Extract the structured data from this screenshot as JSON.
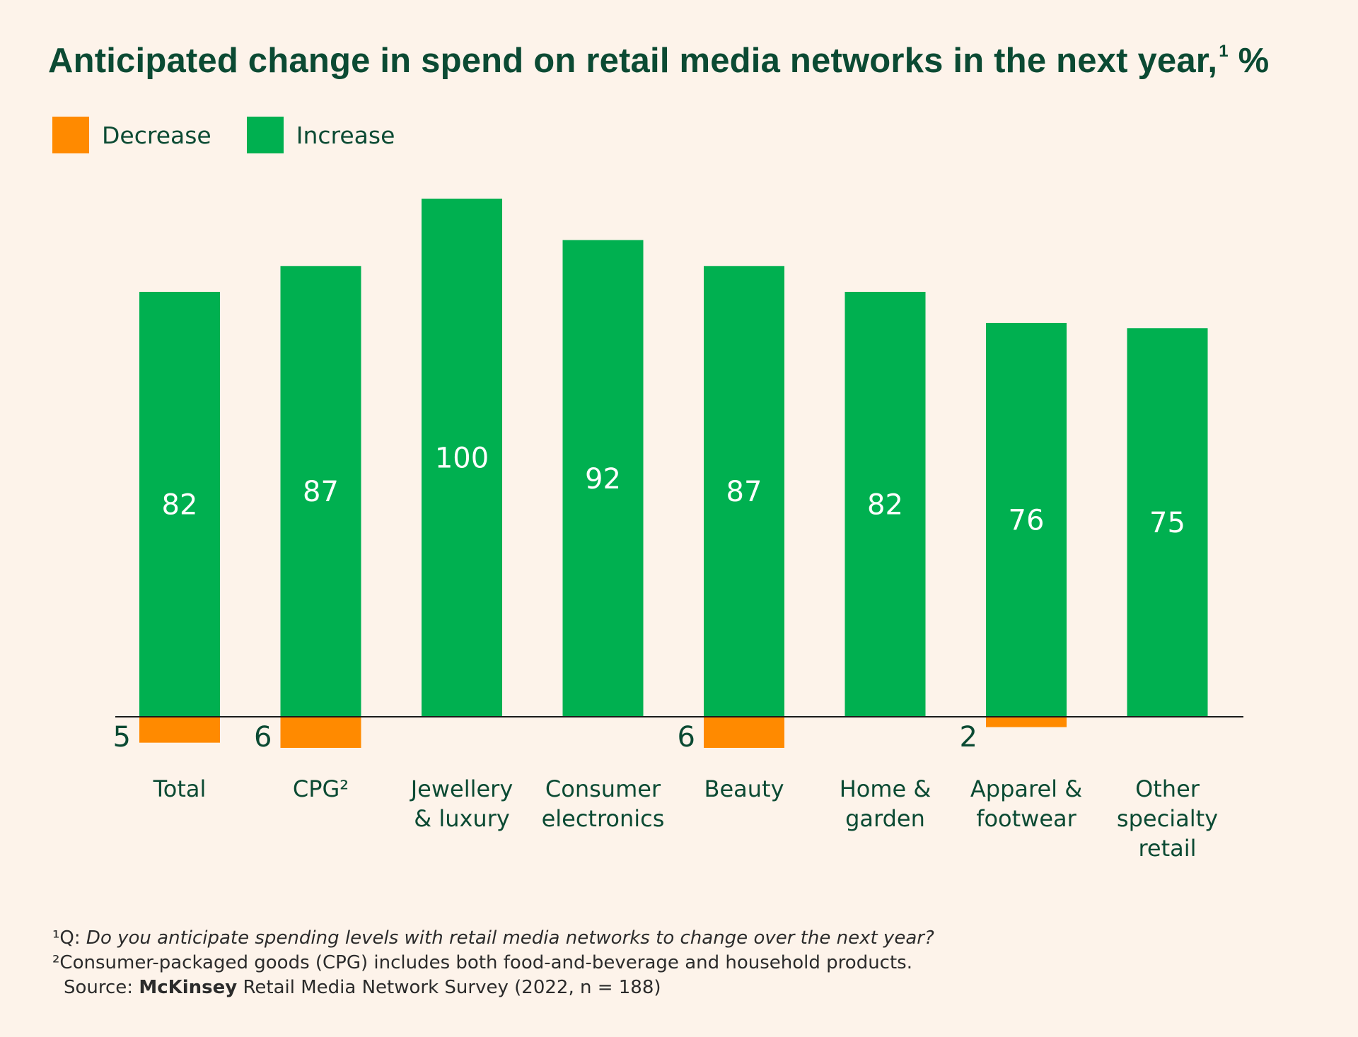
{
  "title": "Anticipated change in spend on retail media networks in the next year,",
  "title_sup": "1",
  "title_unit": "%",
  "colors": {
    "decrease": "#ff8a00",
    "increase": "#00b050",
    "text": "#0b4a33",
    "background": "#fdf3ea"
  },
  "legend": [
    {
      "label": "Decrease",
      "color": "#ff8a00"
    },
    {
      "label": "Increase",
      "color": "#00b050"
    }
  ],
  "chart_data": {
    "type": "bar",
    "categories": [
      [
        "Total"
      ],
      [
        "CPG²"
      ],
      [
        "Jewellery",
        "& luxury"
      ],
      [
        "Consumer",
        "electronics"
      ],
      [
        "Beauty"
      ],
      [
        "Home &",
        "garden"
      ],
      [
        "Apparel &",
        "footwear"
      ],
      [
        "Other",
        "specialty",
        "retail"
      ]
    ],
    "series": [
      {
        "name": "Increase",
        "values": [
          82,
          87,
          100,
          92,
          87,
          82,
          76,
          75
        ]
      },
      {
        "name": "Decrease",
        "values": [
          5,
          6,
          null,
          null,
          6,
          null,
          2,
          null
        ]
      }
    ],
    "ylim": [
      -6,
      100
    ],
    "legend_position": "top-left",
    "grid": false
  },
  "footnotes": {
    "q_prefix": "¹Q: ",
    "q_text": "Do you anticipate spending levels with retail media networks to change over the next year?",
    "note2": "²Consumer-packaged goods (CPG) includes both food-and-beverage and household products.",
    "source_prefix": "Source: ",
    "source_brand": "McKinsey",
    "source_rest": " Retail Media Network Survey (2022, n = 188)"
  }
}
